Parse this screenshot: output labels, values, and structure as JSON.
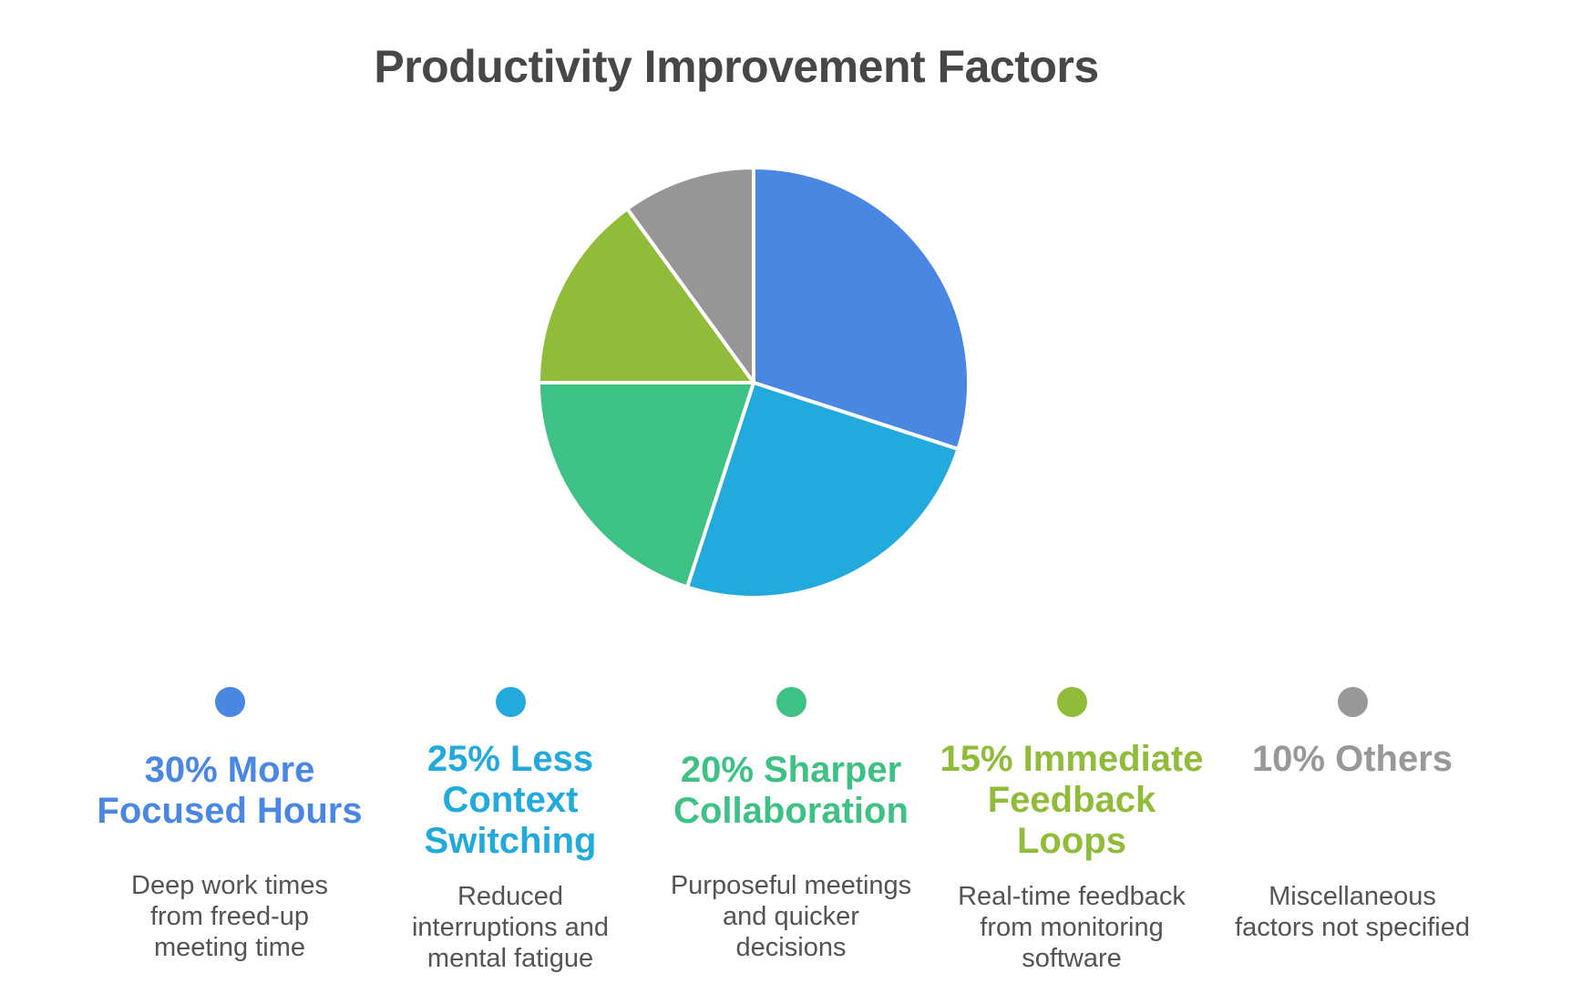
{
  "title": "Productivity Improvement Factors",
  "chart_data": {
    "type": "pie",
    "title": "Productivity Improvement Factors",
    "categories": [
      "More Focused Hours",
      "Less Context Switching",
      "Sharper Collaboration",
      "Immediate Feedback Loops",
      "Others"
    ],
    "values": [
      30,
      25,
      20,
      15,
      10
    ],
    "unit": "percent",
    "colors": [
      "#4A87E3",
      "#21AADB",
      "#3DC184",
      "#91BC3A",
      "#969696"
    ],
    "start_angle_deg": -90,
    "direction": "clockwise",
    "slice_separator_color": "#ffffff",
    "legend_position": "bottom"
  },
  "legend": {
    "items": [
      {
        "heading": "30% More\nFocused Hours",
        "description": "Deep work times\nfrom freed-up\nmeeting time",
        "color": "#4A87E3"
      },
      {
        "heading": "25% Less\nContext\nSwitching",
        "description": "Reduced\ninterruptions and\nmental fatigue",
        "color": "#21AADB"
      },
      {
        "heading": "20% Sharper\nCollaboration",
        "description": "Purposeful meetings\nand quicker\ndecisions",
        "color": "#3DC184"
      },
      {
        "heading": "15% Immediate\nFeedback\nLoops",
        "description": "Real-time feedback\nfrom monitoring\nsoftware",
        "color": "#91BC3A"
      },
      {
        "heading": "10% Others",
        "description": "Miscellaneous\nfactors not specified",
        "color": "#989898"
      }
    ]
  }
}
